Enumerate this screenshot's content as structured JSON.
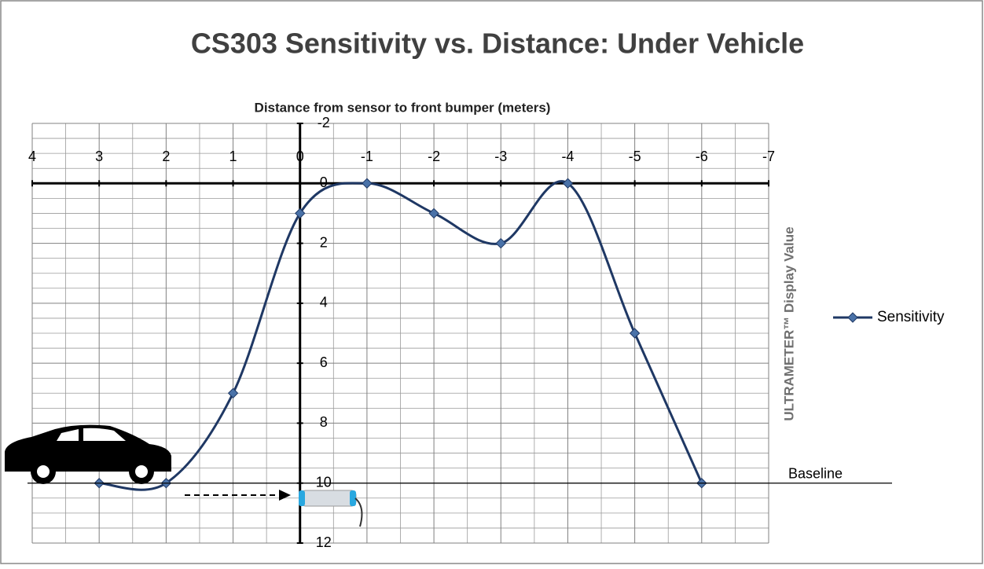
{
  "chart_data": {
    "type": "line",
    "title": "CS303 Sensitivity vs. Distance:  Under Vehicle",
    "x_label": "Distance from sensor to front bumper (meters)",
    "y_label": "ULTRAMETER™ Display Value",
    "x": [
      3,
      2,
      1,
      0,
      -1,
      -2,
      -3,
      -4,
      -5,
      -6
    ],
    "series": [
      {
        "name": "Sensitivity",
        "color": "#1f3864",
        "values": [
          10,
          10,
          7,
          1,
          0,
          1,
          2,
          0,
          5,
          10
        ]
      }
    ],
    "xlim": [
      4,
      -7
    ],
    "xticks": [
      4,
      3,
      2,
      1,
      0,
      -1,
      -2,
      -3,
      -4,
      -5,
      -6,
      -7
    ],
    "ylim": [
      -2,
      12
    ],
    "yticks": [
      -2,
      0,
      2,
      4,
      6,
      8,
      10,
      12
    ],
    "x_reversed": true,
    "y_reversed": true,
    "grid": true,
    "x_minor_divisions": 2,
    "y_minor_divisions": 4,
    "smooth": true,
    "legend": "right",
    "baseline": {
      "value": 10,
      "label": "Baseline"
    }
  }
}
